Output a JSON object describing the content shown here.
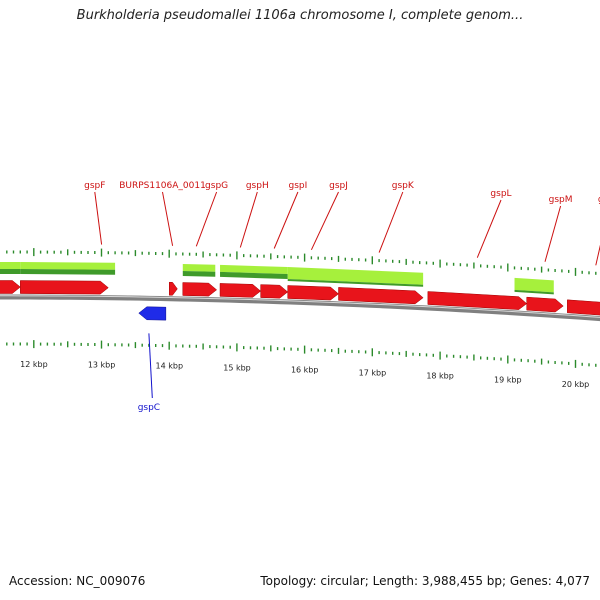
{
  "title": "Burkholderia pseudomallei 1106a chromosome I, complete genom...",
  "footer": {
    "accession": "Accession: NC_009076",
    "topology": "Topology: circular; Length: 3,988,455 bp; Genes: 4,077"
  },
  "colors": {
    "forward_gene": "#e8141b",
    "reverse_gene": "#1f2be8",
    "light_feature": "#a6f03c",
    "dark_feature": "#3f9a2a",
    "tick": "#2b8a2b",
    "backbone": "#808080",
    "forward_label": "#cc1111",
    "reverse_label": "#1111cc"
  },
  "scale": {
    "unit": "kbp",
    "ticks": [
      {
        "kbp": 12,
        "label": "12 kbp"
      },
      {
        "kbp": 13,
        "label": "13 kbp"
      },
      {
        "kbp": 14,
        "label": "14 kbp"
      },
      {
        "kbp": 15,
        "label": "15 kbp"
      },
      {
        "kbp": 16,
        "label": "16 kbp"
      },
      {
        "kbp": 17,
        "label": "17 kbp"
      },
      {
        "kbp": 18,
        "label": "18 kbp"
      },
      {
        "kbp": 19,
        "label": "19 kbp"
      },
      {
        "kbp": 20,
        "label": "20 kbp"
      }
    ]
  },
  "forward_genes": [
    {
      "start": 11.2,
      "end": 11.8
    },
    {
      "start": 11.8,
      "end": 13.1
    },
    {
      "start": 14.0,
      "end": 14.12
    },
    {
      "start": 14.2,
      "end": 14.7
    },
    {
      "start": 14.75,
      "end": 15.35
    },
    {
      "start": 15.35,
      "end": 15.75
    },
    {
      "start": 15.75,
      "end": 16.5
    },
    {
      "start": 16.5,
      "end": 17.75
    },
    {
      "start": 17.82,
      "end": 19.28
    },
    {
      "start": 19.28,
      "end": 19.82
    },
    {
      "start": 19.88,
      "end": 20.7
    }
  ],
  "reverse_genes": [
    {
      "start": 13.55,
      "end": 13.95
    }
  ],
  "features": [
    {
      "start": 11.2,
      "end": 11.8,
      "style": "split"
    },
    {
      "start": 11.8,
      "end": 13.2,
      "style": "split"
    },
    {
      "start": 14.2,
      "end": 14.68,
      "style": "split"
    },
    {
      "start": 14.75,
      "end": 15.75,
      "style": "split"
    },
    {
      "start": 15.75,
      "end": 17.75,
      "style": "light"
    },
    {
      "start": 19.1,
      "end": 19.68,
      "style": "light"
    }
  ],
  "gene_labels": [
    {
      "text": "gspF",
      "label_kbp": 12.9,
      "gene_kbp": 13.0,
      "strand": "forward",
      "level": 0
    },
    {
      "text": "BURPS1106A_0011",
      "label_kbp": 13.9,
      "gene_kbp": 14.05,
      "strand": "forward",
      "level": 0
    },
    {
      "text": "gspG",
      "label_kbp": 14.7,
      "gene_kbp": 14.4,
      "strand": "forward",
      "level": 0
    },
    {
      "text": "gspH",
      "label_kbp": 15.3,
      "gene_kbp": 15.05,
      "strand": "forward",
      "level": 0
    },
    {
      "text": "gspI",
      "label_kbp": 15.9,
      "gene_kbp": 15.55,
      "strand": "forward",
      "level": 0
    },
    {
      "text": "gspJ",
      "label_kbp": 16.5,
      "gene_kbp": 16.1,
      "strand": "forward",
      "level": 0
    },
    {
      "text": "gspK",
      "label_kbp": 17.45,
      "gene_kbp": 17.1,
      "strand": "forward",
      "level": 0
    },
    {
      "text": "gspL",
      "label_kbp": 18.9,
      "gene_kbp": 18.55,
      "strand": "forward",
      "level": 1
    },
    {
      "text": "gspM",
      "label_kbp": 19.78,
      "gene_kbp": 19.55,
      "strand": "forward",
      "level": 2
    },
    {
      "text": "gspN",
      "label_kbp": 20.5,
      "gene_kbp": 20.3,
      "strand": "forward",
      "level": 2
    },
    {
      "text": "gspC",
      "label_kbp": 13.7,
      "gene_kbp": 13.75,
      "strand": "reverse",
      "level": 0
    }
  ]
}
